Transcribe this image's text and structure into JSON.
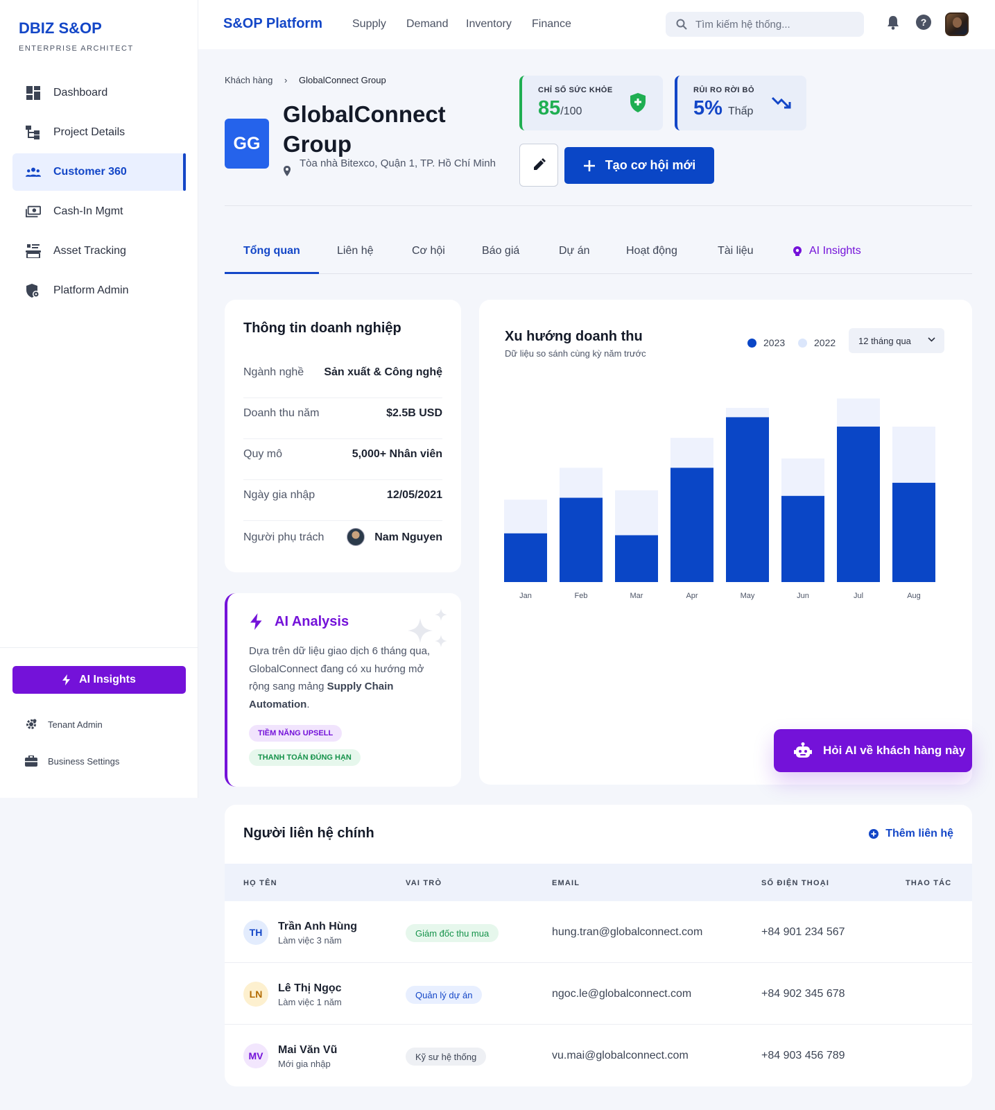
{
  "sidebar": {
    "brand": "DBIZ S&OP",
    "brand_sub": "ENTERPRISE ARCHITECT",
    "items": [
      {
        "label": "Dashboard",
        "icon": "dashboard-icon"
      },
      {
        "label": "Project Details",
        "icon": "project-tree-icon"
      },
      {
        "label": "Customer 360",
        "icon": "people-icon",
        "active": true
      },
      {
        "label": "Cash-In Mgmt",
        "icon": "cash-icon"
      },
      {
        "label": "Asset Tracking",
        "icon": "asset-icon"
      },
      {
        "label": "Platform Admin",
        "icon": "admin-shield-icon"
      }
    ],
    "ai_button": "AI Insights",
    "footer_links": [
      {
        "label": "Tenant Admin",
        "icon": "gear-icon"
      },
      {
        "label": "Business Settings",
        "icon": "briefcase-icon"
      }
    ]
  },
  "topbar": {
    "app_title": "S&OP Platform",
    "menu": [
      "Supply",
      "Demand",
      "Inventory",
      "Finance"
    ],
    "search_placeholder": "Tìm kiếm hệ thống..."
  },
  "breadcrumb": {
    "parent": "Khách hàng",
    "separator": "›",
    "current": "GlobalConnect Group"
  },
  "company": {
    "initials": "GG",
    "name": "GlobalConnect Group",
    "address": "Tòa nhà Bitexco, Quận 1, TP. Hồ Chí Minh"
  },
  "kpis": {
    "health": {
      "label": "CHỈ SỐ SỨC KHỎE",
      "value": "85",
      "unit": "/100",
      "color": "#1fae52"
    },
    "churn": {
      "label": "RỦI RO RỜI BỎ",
      "value": "5%",
      "unit": "Thấp",
      "color": "#1346c7"
    }
  },
  "actions": {
    "create": "Tạo cơ hội mới"
  },
  "tabs": [
    "Tổng quan",
    "Liên hệ",
    "Cơ hội",
    "Báo giá",
    "Dự án",
    "Hoạt động",
    "Tài liệu",
    "AI Insights"
  ],
  "business_info": {
    "title": "Thông tin doanh nghiệp",
    "rows": [
      {
        "key": "Ngành nghề",
        "value": "Sản xuất & Công nghệ"
      },
      {
        "key": "Doanh thu năm",
        "value": "$2.5B USD"
      },
      {
        "key": "Quy mô",
        "value": "5,000+ Nhân viên"
      },
      {
        "key": "Ngày gia nhập",
        "value": "12/05/2021"
      },
      {
        "key": "Người phụ trách",
        "value": "Nam Nguyen"
      }
    ]
  },
  "ai_analysis": {
    "title": "AI Analysis",
    "text_before": "Dựa trên dữ liệu giao dịch 6 tháng qua, GlobalConnect đang có xu hướng mở rộng sang mảng ",
    "text_bold": "Supply Chain Automation",
    "text_after": ".",
    "tags": [
      {
        "label": "TIỀM NĂNG UPSELL",
        "bg": "#f1e4fd",
        "fg": "#7412d9"
      },
      {
        "label": "THANH TOÁN ĐÚNG HẠN",
        "bg": "#e6f7ec",
        "fg": "#15924a"
      }
    ]
  },
  "revenue_chart": {
    "title": "Xu hướng doanh thu",
    "subtitle": "Dữ liệu so sánh cùng kỳ năm trước",
    "range": "12 tháng qua"
  },
  "chart_data": {
    "type": "bar",
    "categories": [
      "Jan",
      "Feb",
      "Mar",
      "Apr",
      "May",
      "Jun",
      "Jul",
      "Aug"
    ],
    "series": [
      {
        "name": "2023",
        "color": "#0a46c6",
        "values": [
          26,
          45,
          25,
          61,
          88,
          46,
          83,
          53
        ]
      },
      {
        "name": "2022",
        "color": "#eef2fd",
        "values": [
          44,
          61,
          49,
          77,
          93,
          66,
          98,
          83
        ]
      }
    ],
    "ylim": [
      0,
      100
    ],
    "grid": false,
    "legend": "top-right"
  },
  "ask_ai": "Hỏi AI về khách hàng này",
  "contacts": {
    "title": "Người liên hệ chính",
    "add_label": "Thêm liên hệ",
    "headers": [
      "HỌ TÊN",
      "VAI TRÒ",
      "EMAIL",
      "SỐ ĐIỆN THOẠI",
      "THAO TÁC"
    ],
    "rows": [
      {
        "initials": "TH",
        "name": "Trần Anh Hùng",
        "tenure": "Làm việc 3 năm",
        "role": "Giám đốc thu mua",
        "email": "hung.tran@globalconnect.com",
        "phone": "+84 901 234 567",
        "av_bg": "#e3ecfd",
        "av_fg": "#1346c7",
        "role_bg": "#e6f7ec",
        "role_fg": "#15924a"
      },
      {
        "initials": "LN",
        "name": "Lê Thị Ngọc",
        "tenure": "Làm việc 1 năm",
        "role": "Quản lý dự án",
        "email": "ngoc.le@globalconnect.com",
        "phone": "+84 902 345 678",
        "av_bg": "#fdf0cf",
        "av_fg": "#b26a00",
        "role_bg": "#e8efff",
        "role_fg": "#1346c7"
      },
      {
        "initials": "MV",
        "name": "Mai Văn Vũ",
        "tenure": "Mới gia nhập",
        "role": "Kỹ sư hệ thống",
        "email": "vu.mai@globalconnect.com",
        "phone": "+84 903 456 789",
        "av_bg": "#f2e6fd",
        "av_fg": "#7412d9",
        "role_bg": "#eef0f4",
        "role_fg": "#3c4454"
      }
    ]
  }
}
